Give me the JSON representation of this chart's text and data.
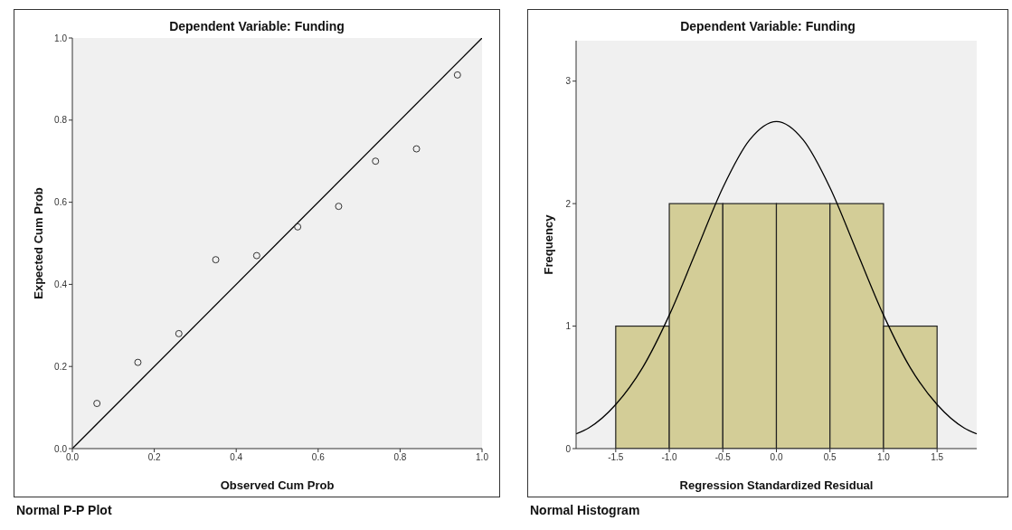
{
  "chart_data": [
    {
      "type": "scatter",
      "title": "Dependent Variable: Funding",
      "xlabel": "Observed Cum Prob",
      "ylabel": "Expected Cum Prob",
      "annotations": [
        "Normal P-P Plot"
      ],
      "xlim": [
        0,
        1
      ],
      "ylim": [
        0,
        1
      ],
      "xticks": [
        {
          "value": 0,
          "label": "0.0"
        },
        0.2,
        0.4,
        0.6,
        0.8,
        {
          "value": 1,
          "label": "1.0"
        }
      ],
      "yticks": [
        {
          "value": 0,
          "label": "0.0"
        },
        0.2,
        0.4,
        0.6,
        0.8,
        {
          "value": 1,
          "label": "1.0"
        }
      ],
      "series": [
        {
          "marker": "circle",
          "color": "#333333",
          "x": [
            0.06,
            0.16,
            0.26,
            0.35,
            0.45,
            0.55,
            0.65,
            0.74,
            0.84,
            0.94
          ],
          "values": [
            0.11,
            0.21,
            0.28,
            0.46,
            0.47,
            0.54,
            0.59,
            0.7,
            0.73,
            0.91
          ]
        },
        {
          "type": "line",
          "color": "#000000",
          "x": [
            0,
            1
          ],
          "values": [
            0,
            1
          ]
        }
      ]
    },
    {
      "type": "histogram",
      "title": "Dependent Variable: Funding",
      "xlabel": "Regression Standardized Residual",
      "ylabel": "Frequency",
      "annotations": [
        "Normal Histogram"
      ],
      "xlim": [
        -1.87,
        1.87
      ],
      "ylim": [
        0,
        3.33
      ],
      "xticks": [
        -1.5,
        {
          "value": -1,
          "label": "-1.0"
        },
        -0.5,
        {
          "value": 0,
          "label": "0.0"
        },
        0.5,
        {
          "value": 1,
          "label": "1.0"
        },
        1.5
      ],
      "yticks": [
        0,
        1,
        2,
        3
      ],
      "bins": [
        -1.5,
        -1,
        -0.5,
        0,
        0.5,
        1,
        1.5
      ],
      "series": [
        {
          "color": "#d3cd97",
          "values": [
            1,
            2,
            2,
            2,
            2,
            1
          ]
        },
        {
          "type": "line",
          "color": "#000000",
          "x": [
            -1.87,
            -1.75,
            -1.5,
            -1.25,
            -1,
            -0.75,
            -0.5,
            -0.25,
            0,
            0.25,
            0.5,
            0.75,
            1,
            1.25,
            1.5,
            1.75,
            1.87
          ],
          "values": [
            0.12,
            0.17,
            0.36,
            0.66,
            1.09,
            1.61,
            2.13,
            2.52,
            2.67,
            2.52,
            2.13,
            1.61,
            1.09,
            0.66,
            0.36,
            0.17,
            0.12
          ]
        }
      ]
    }
  ]
}
